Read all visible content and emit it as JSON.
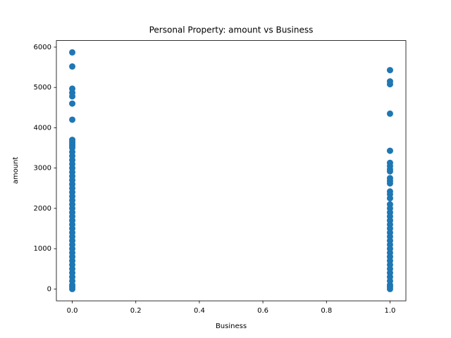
{
  "chart_data": {
    "type": "scatter",
    "title": "Personal Property: amount vs Business",
    "x_label": "Business",
    "y_label": "amount",
    "color": "#1f77b4",
    "x": [
      0,
      0,
      0,
      0,
      0,
      0,
      0,
      0,
      0,
      0,
      0,
      0,
      0,
      0,
      0,
      0,
      0,
      0,
      0,
      0,
      0,
      0,
      0,
      0,
      0,
      0,
      0,
      0,
      0,
      0,
      0,
      0,
      0,
      0,
      0,
      0,
      0,
      0,
      0,
      0,
      0,
      0,
      0,
      0,
      0,
      0,
      0,
      0,
      1,
      1,
      1,
      1,
      1,
      1,
      1,
      1,
      1,
      1,
      1,
      1,
      1,
      1,
      1,
      1,
      1,
      1,
      1,
      1,
      1,
      1,
      1,
      1,
      1,
      1,
      1,
      1,
      1,
      1,
      1,
      1,
      1,
      1,
      1,
      1,
      1,
      1
    ],
    "values": [
      5870,
      5520,
      4970,
      4870,
      4780,
      4600,
      4200,
      3700,
      3650,
      3600,
      3550,
      3500,
      3400,
      3300,
      3200,
      3100,
      3000,
      2900,
      2800,
      2700,
      2600,
      2500,
      2400,
      2300,
      2200,
      2100,
      2000,
      1900,
      1800,
      1700,
      1600,
      1500,
      1400,
      1300,
      1200,
      1100,
      1000,
      900,
      800,
      700,
      600,
      500,
      400,
      300,
      200,
      100,
      50,
      0,
      5430,
      5150,
      5080,
      4350,
      3430,
      3130,
      3050,
      2970,
      2920,
      2750,
      2680,
      2620,
      2420,
      2350,
      2250,
      2100,
      2000,
      1900,
      1800,
      1700,
      1600,
      1500,
      1400,
      1300,
      1200,
      1100,
      1000,
      900,
      800,
      700,
      600,
      500,
      400,
      300,
      200,
      100,
      50,
      0
    ],
    "xlim": [
      -0.05,
      1.05
    ],
    "ylim": [
      -293.5,
      6163.5
    ],
    "xticks": [
      {
        "value": 0,
        "label": "0.0"
      },
      0.2,
      0.4,
      0.6,
      0.8,
      {
        "value": 1,
        "label": "1.0"
      }
    ],
    "yticks": [
      0,
      1000,
      2000,
      3000,
      4000,
      5000,
      6000
    ]
  }
}
